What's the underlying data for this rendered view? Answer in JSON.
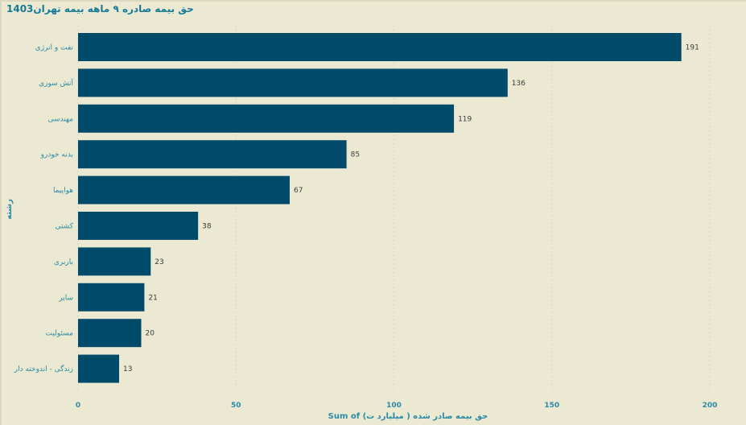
{
  "title": "حق بیمه صادره ۹ ماهه بیمه تهران1403",
  "colors": {
    "background": "#ece9d3",
    "bar": "#004a6a",
    "label": "#2b8aa6",
    "title": "#157a98"
  },
  "chart_data": {
    "type": "bar",
    "orientation": "horizontal",
    "categories": [
      "نفت و انرژی",
      "آتش سوزی",
      "مهندسی",
      "بدنه خودرو",
      "هواپیما",
      "کشتی",
      "باربری",
      "سایر",
      "مسئولیت",
      "زندگی - اندوخته دار"
    ],
    "values": [
      191,
      136,
      119,
      85,
      67,
      38,
      23,
      21,
      20,
      13
    ],
    "value_labels": [
      "191",
      "136",
      "119",
      "85",
      "67",
      "38",
      "23",
      "21",
      "20",
      "13"
    ],
    "xlabel": "Sum of حق بیمه صادر شده ( میلیارد ت)",
    "ylabel": "رشته",
    "xlim": [
      0,
      200
    ],
    "x_ticks": [
      0,
      50,
      100,
      150,
      200
    ],
    "grid": true
  }
}
